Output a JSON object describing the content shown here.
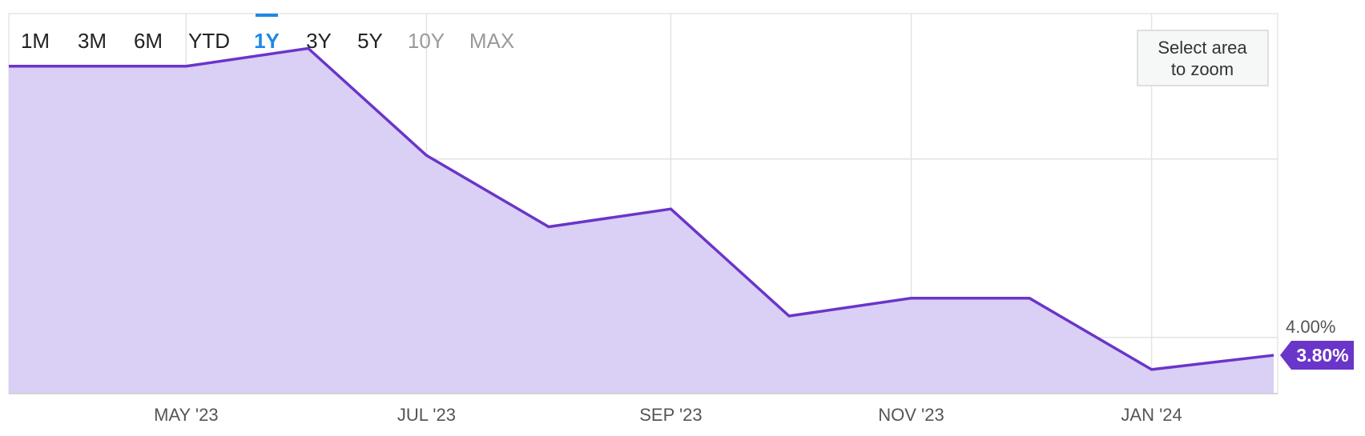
{
  "range_selector": {
    "buttons": [
      {
        "label": "1M",
        "enabled": true,
        "active": false
      },
      {
        "label": "3M",
        "enabled": true,
        "active": false
      },
      {
        "label": "6M",
        "enabled": true,
        "active": false
      },
      {
        "label": "YTD",
        "enabled": true,
        "active": false
      },
      {
        "label": "1Y",
        "enabled": true,
        "active": true
      },
      {
        "label": "3Y",
        "enabled": true,
        "active": false
      },
      {
        "label": "5Y",
        "enabled": true,
        "active": false
      },
      {
        "label": "10Y",
        "enabled": false,
        "active": false
      },
      {
        "label": "MAX",
        "enabled": false,
        "active": false
      }
    ],
    "active_color": "#1e88e5"
  },
  "zoom_hint": {
    "line1": "Select area",
    "line2": "to zoom"
  },
  "chart_data": {
    "type": "area",
    "x": [
      "2023-04-01",
      "2023-05-01",
      "2023-06-01",
      "2023-07-01",
      "2023-08-01",
      "2023-09-01",
      "2023-10-01",
      "2023-11-01",
      "2023-12-01",
      "2024-01-01",
      "2024-02-01"
    ],
    "series": [
      {
        "values": [
          7.04,
          7.04,
          7.24,
          6.04,
          5.24,
          5.44,
          4.24,
          4.44,
          4.44,
          3.64,
          3.8
        ],
        "color": "#6a35c9",
        "fill_color": "#d8ccf3"
      }
    ],
    "x_tick_labels": [
      {
        "date": "2023-05-01",
        "label": "MAY '23"
      },
      {
        "date": "2023-07-01",
        "label": "JUL '23"
      },
      {
        "date": "2023-09-01",
        "label": "SEP '23"
      },
      {
        "date": "2023-11-01",
        "label": "NOV '23"
      },
      {
        "date": "2024-01-01",
        "label": "JAN '24"
      }
    ],
    "y_tick_labels": [
      {
        "value": 4.0,
        "label": "4.00%"
      }
    ],
    "y_gridlines": [
      4.0,
      6.0
    ],
    "last_value_label": "3.80%",
    "title": "",
    "xlabel": "",
    "ylabel": "",
    "ylim": [
      3.37,
      7.63
    ],
    "grid": true,
    "legend": "none"
  }
}
